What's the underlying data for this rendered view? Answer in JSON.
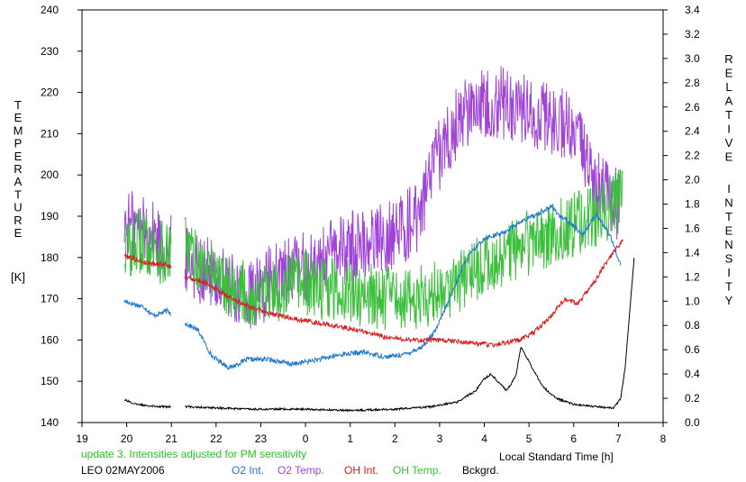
{
  "chart_data": {
    "type": "line",
    "title": "",
    "xlabel": "Local Standard Time [h]",
    "ylabel_left": "TEMPERATURE [K]",
    "ylabel_left_letters": [
      "T",
      "E",
      "M",
      "P",
      "E",
      "R",
      "A",
      "T",
      "U",
      "R",
      "E"
    ],
    "ylabel_left_unit": "[K]",
    "ylabel_right": "RELATIVE INTENSITY",
    "ylabel_right_letters_1": [
      "R",
      "E",
      "L",
      "A",
      "T",
      "I",
      "V",
      "E"
    ],
    "ylabel_right_letters_2": [
      "I",
      "N",
      "T",
      "E",
      "N",
      "S",
      "I",
      "T",
      "Y"
    ],
    "x_hours": [
      -5,
      -4,
      -3,
      -2,
      -1,
      0,
      1,
      2,
      3,
      4,
      5,
      6,
      7,
      8,
      9
    ],
    "x_tick_labels": [
      "19",
      "20",
      "21",
      "22",
      "23",
      "0",
      "1",
      "2",
      "3",
      "4",
      "5",
      "6",
      "7",
      "8"
    ],
    "xlim": [
      -5,
      8
    ],
    "ylim_left": [
      140,
      240
    ],
    "y_left_ticks": [
      140,
      150,
      160,
      170,
      180,
      190,
      200,
      210,
      220,
      230,
      240
    ],
    "ylim_right": [
      0.0,
      3.4
    ],
    "y_right_ticks": [
      "0.0",
      "0.2",
      "0.4",
      "0.6",
      "0.8",
      "1.0",
      "1.2",
      "1.4",
      "1.6",
      "1.8",
      "2.0",
      "2.2",
      "2.4",
      "2.6",
      "2.8",
      "3.0",
      "3.2",
      "3.4"
    ],
    "grid": false,
    "notes": {
      "update": "update 3. Intensities adjusted for PM sensitivity",
      "station": "LEO 02MAY2006"
    },
    "series": [
      {
        "name": "O2 Int.",
        "color": "#1e78d2",
        "axis": "right",
        "noise": 0.02,
        "x": [
          -4.05,
          -3.6,
          -3.4,
          -3.1,
          -2.7,
          -2.4,
          -2.1,
          -1.7,
          -1.3,
          -0.8,
          -0.3,
          0.3,
          0.8,
          1.3,
          1.8,
          2.2,
          2.6,
          2.9,
          3.2,
          3.6,
          4.0,
          4.4,
          4.8,
          5.2,
          5.5,
          5.7,
          6.0,
          6.2,
          6.5,
          6.8,
          7.05
        ],
        "values": [
          1.0,
          0.95,
          0.88,
          0.92,
          0.82,
          0.76,
          0.55,
          0.45,
          0.52,
          0.52,
          0.48,
          0.52,
          0.56,
          0.58,
          0.54,
          0.56,
          0.62,
          0.75,
          1.0,
          1.35,
          1.52,
          1.56,
          1.65,
          1.72,
          1.78,
          1.7,
          1.62,
          1.55,
          1.72,
          1.55,
          1.3
        ],
        "gaps": [
          [
            -3.0,
            -2.7
          ]
        ]
      },
      {
        "name": "O2 Temp.",
        "color": "#a044d8",
        "axis": "left",
        "noise": 9,
        "x": [
          -4.05,
          -3.6,
          -3.1,
          -2.8,
          -2.4,
          -2.0,
          -1.6,
          -1.2,
          -0.8,
          -0.3,
          0.2,
          0.8,
          1.4,
          2.0,
          2.5,
          3.0,
          3.4,
          3.8,
          4.2,
          4.6,
          5.0,
          5.4,
          5.8,
          6.2,
          6.5,
          6.8,
          7.05
        ],
        "values": [
          188,
          187,
          182,
          182,
          178,
          175,
          172,
          170,
          174,
          177,
          178,
          182,
          184,
          186,
          190,
          205,
          213,
          218,
          218,
          217,
          216,
          214,
          212,
          206,
          198,
          194,
          192
        ],
        "gaps": [
          [
            -3.0,
            -2.7
          ]
        ]
      },
      {
        "name": "OH Int.",
        "color": "#d81c1c",
        "axis": "right",
        "noise": 0.02,
        "x": [
          -4.05,
          -3.6,
          -3.1,
          -2.7,
          -2.2,
          -1.8,
          -1.4,
          -1.0,
          -0.6,
          0.0,
          0.6,
          1.2,
          1.8,
          2.4,
          3.0,
          3.6,
          4.2,
          4.8,
          5.1,
          5.4,
          5.8,
          6.1,
          6.5,
          6.8,
          7.1
        ],
        "values": [
          1.38,
          1.32,
          1.3,
          1.2,
          1.15,
          1.05,
          0.98,
          0.92,
          0.88,
          0.84,
          0.8,
          0.76,
          0.7,
          0.68,
          0.68,
          0.66,
          0.64,
          0.68,
          0.74,
          0.84,
          1.02,
          0.98,
          1.18,
          1.36,
          1.5
        ],
        "gaps": [
          [
            -3.0,
            -2.7
          ]
        ]
      },
      {
        "name": "OH Temp.",
        "color": "#3cc03c",
        "axis": "left",
        "noise": 8,
        "x": [
          -4.05,
          -3.6,
          -3.1,
          -2.8,
          -2.4,
          -2.0,
          -1.6,
          -1.2,
          -0.8,
          -0.3,
          0.2,
          0.8,
          1.4,
          2.0,
          2.5,
          3.0,
          3.5,
          4.0,
          4.4,
          4.8,
          5.2,
          5.6,
          6.0,
          6.4,
          6.8,
          7.1
        ],
        "values": [
          182,
          184,
          180,
          184,
          179,
          176,
          173,
          170,
          171,
          174,
          173,
          172,
          171,
          170,
          170,
          172,
          175,
          178,
          180,
          183,
          184,
          186,
          188,
          190,
          192,
          194
        ],
        "gaps": [
          [
            -3.0,
            -2.7
          ]
        ]
      },
      {
        "name": "Bckgrd.",
        "color": "#000000",
        "axis": "right",
        "noise": 0.008,
        "x": [
          -4.05,
          -3.8,
          -3.2,
          -2.6,
          -2.0,
          -1.2,
          0.0,
          1.0,
          2.0,
          2.8,
          3.4,
          3.8,
          4.0,
          4.15,
          4.3,
          4.5,
          4.7,
          4.82,
          5.0,
          5.3,
          5.6,
          6.0,
          6.5,
          6.9,
          7.05,
          7.15,
          7.25,
          7.35
        ],
        "values": [
          0.19,
          0.15,
          0.13,
          0.13,
          0.12,
          0.11,
          0.11,
          0.1,
          0.11,
          0.13,
          0.17,
          0.26,
          0.36,
          0.4,
          0.34,
          0.26,
          0.38,
          0.62,
          0.5,
          0.3,
          0.2,
          0.15,
          0.13,
          0.12,
          0.2,
          0.45,
          0.9,
          1.35
        ],
        "gaps": [
          [
            -3.0,
            -2.7
          ]
        ]
      }
    ]
  }
}
